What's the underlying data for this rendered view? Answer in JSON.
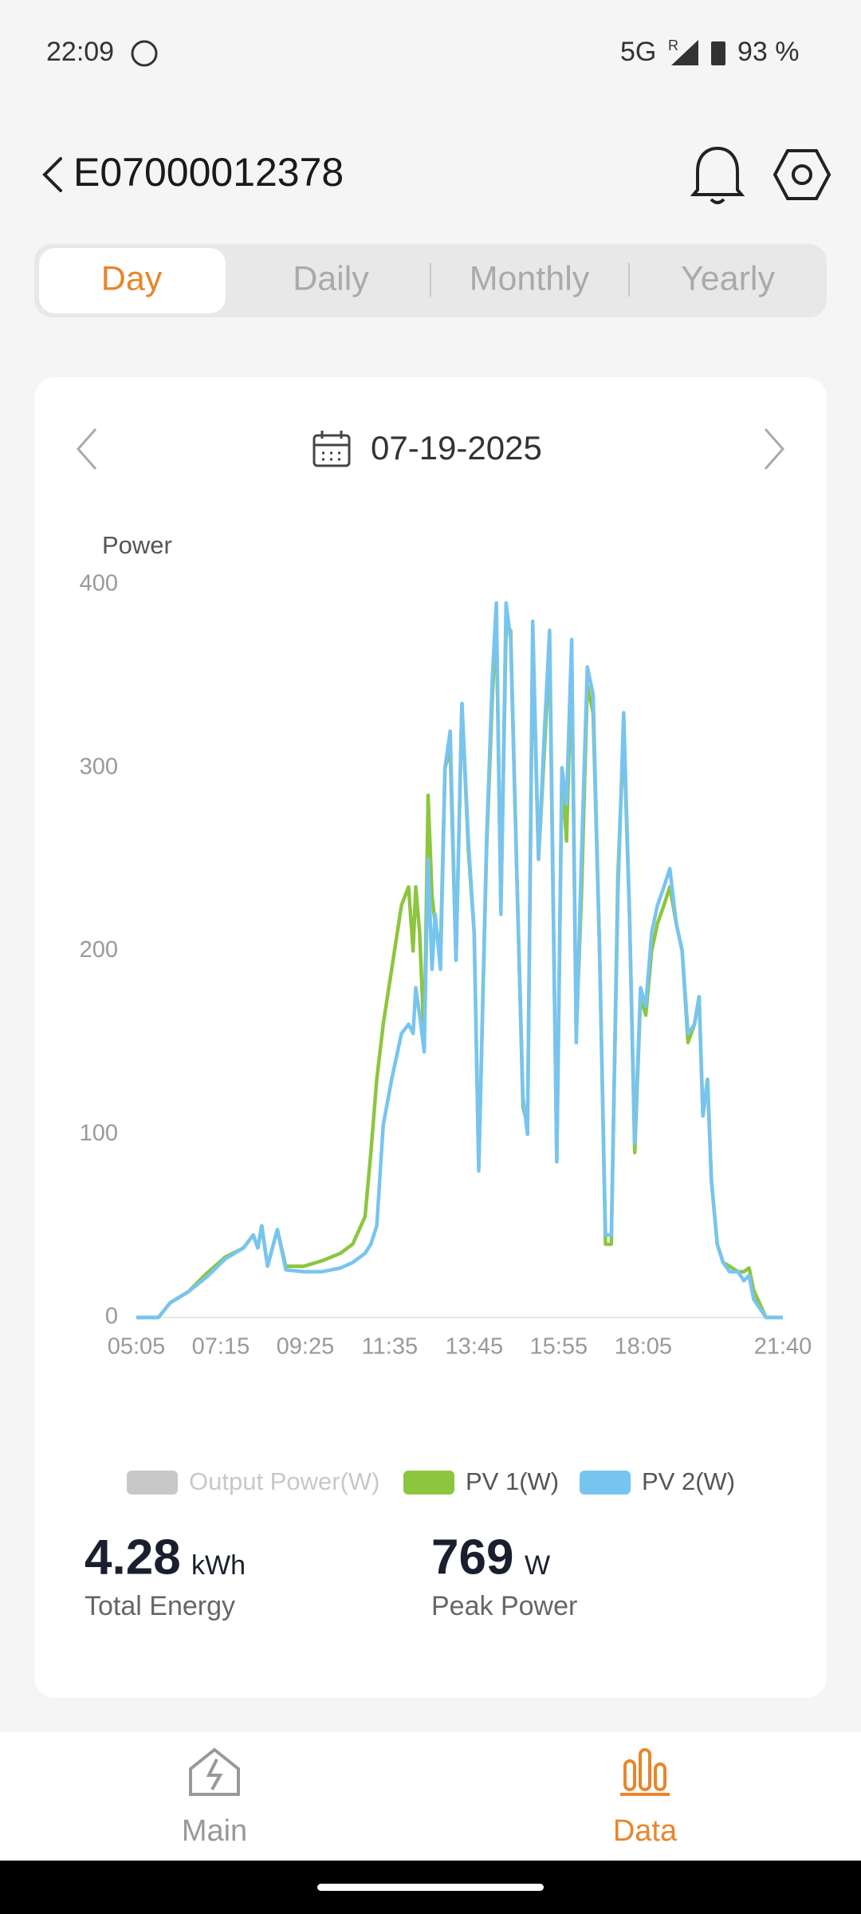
{
  "status_bar": {
    "time": "22:09",
    "network": "5G",
    "roaming": "R",
    "battery": "93 %"
  },
  "header": {
    "title": "E07000012378"
  },
  "tabs": [
    "Day",
    "Daily",
    "Monthly",
    "Yearly"
  ],
  "date": "07-19-2025",
  "chart_data": {
    "type": "line",
    "ylabel": "Power",
    "x": [
      305,
      339,
      357,
      385,
      413,
      442,
      470,
      485,
      492,
      498,
      507,
      522,
      535,
      563,
      591,
      619,
      638,
      657,
      666,
      675,
      685,
      698,
      713,
      724,
      731,
      735,
      741,
      748,
      754,
      760,
      765,
      773,
      780,
      788,
      797,
      806,
      816,
      825,
      832,
      844,
      853,
      859,
      866,
      874,
      881,
      890,
      900,
      907,
      915,
      924,
      933,
      941,
      952,
      960,
      967,
      975,
      982,
      990,
      999,
      1008,
      1018,
      1027,
      1036,
      1046,
      1055,
      1064,
      1072,
      1081,
      1089,
      1098,
      1107,
      1117,
      1126,
      1136,
      1145,
      1154,
      1164,
      1171,
      1177,
      1184,
      1190,
      1199,
      1208,
      1218,
      1231,
      1240,
      1248,
      1255,
      1274,
      1300
    ],
    "xlim": [
      305,
      1300
    ],
    "xticks": [
      {
        "value": 305,
        "label": "05:05"
      },
      {
        "value": 435,
        "label": "07:15"
      },
      {
        "value": 565,
        "label": "09:25"
      },
      {
        "value": 695,
        "label": "11:35"
      },
      {
        "value": 825,
        "label": "13:45"
      },
      {
        "value": 955,
        "label": "15:55"
      },
      {
        "value": 1085,
        "label": "18:05"
      },
      {
        "value": 1300,
        "label": "21:40"
      }
    ],
    "ylim": [
      0,
      400
    ],
    "yticks": [
      0,
      100,
      200,
      300,
      400
    ],
    "grid": false,
    "series": [
      {
        "name": "Output Power(W)",
        "color": "#c8c8c8",
        "visible": false,
        "values": [
          null,
          null,
          null,
          null,
          null,
          null,
          null,
          null,
          null,
          null,
          null,
          null,
          null,
          null,
          null,
          null,
          null,
          null,
          null,
          null,
          null,
          null,
          null,
          null,
          null,
          null,
          null,
          null,
          null,
          null,
          null,
          null,
          null,
          null,
          null,
          null,
          null,
          null,
          null,
          null,
          null,
          null,
          null,
          null,
          null,
          null,
          null,
          null,
          null,
          null,
          null,
          null,
          null,
          null,
          null,
          null,
          null,
          null,
          null,
          null,
          null,
          null,
          null,
          null,
          null,
          null,
          null,
          null,
          null,
          null,
          null,
          null,
          null,
          null,
          null,
          null,
          null,
          null,
          null,
          null,
          null,
          null,
          null,
          null,
          null,
          null,
          null,
          null,
          null,
          null
        ]
      },
      {
        "name": "PV 1(W)",
        "color": "#8cc63f",
        "visible": true,
        "values": [
          0,
          0,
          8,
          14,
          24,
          33,
          38,
          45,
          38,
          50,
          28,
          48,
          28,
          28,
          31,
          35,
          40,
          55,
          90,
          130,
          160,
          190,
          225,
          235,
          200,
          235,
          210,
          150,
          285,
          230,
          215,
          200,
          300,
          310,
          195,
          335,
          255,
          210,
          82,
          255,
          340,
          380,
          225,
          375,
          375,
          250,
          115,
          105,
          370,
          250,
          310,
          365,
          85,
          300,
          260,
          360,
          155,
          230,
          345,
          330,
          200,
          40,
          40,
          240,
          320,
          220,
          90,
          175,
          165,
          200,
          215,
          225,
          235,
          215,
          200,
          150,
          160,
          175,
          110,
          130,
          75,
          40,
          30,
          28,
          25,
          25,
          27,
          15,
          0,
          0
        ]
      },
      {
        "name": "PV 2(W)",
        "color": "#78c4f0",
        "visible": true,
        "values": [
          0,
          0,
          8,
          14,
          22,
          32,
          38,
          45,
          38,
          50,
          28,
          48,
          26,
          25,
          25,
          27,
          30,
          35,
          40,
          50,
          105,
          130,
          155,
          160,
          155,
          180,
          165,
          145,
          250,
          190,
          220,
          190,
          300,
          320,
          195,
          335,
          260,
          210,
          80,
          260,
          350,
          390,
          220,
          390,
          370,
          250,
          120,
          100,
          380,
          250,
          320,
          375,
          85,
          300,
          280,
          370,
          150,
          250,
          355,
          340,
          200,
          45,
          45,
          230,
          330,
          220,
          95,
          180,
          170,
          210,
          225,
          235,
          245,
          215,
          200,
          155,
          160,
          175,
          110,
          130,
          75,
          40,
          30,
          25,
          25,
          20,
          23,
          10,
          0,
          0
        ]
      }
    ]
  },
  "stats": [
    {
      "value": 4.28,
      "unit": "kWh",
      "label": "Total Energy"
    },
    {
      "value": 769,
      "unit": "W",
      "label": "Peak Power"
    }
  ],
  "nav": [
    "Main",
    "Data"
  ]
}
